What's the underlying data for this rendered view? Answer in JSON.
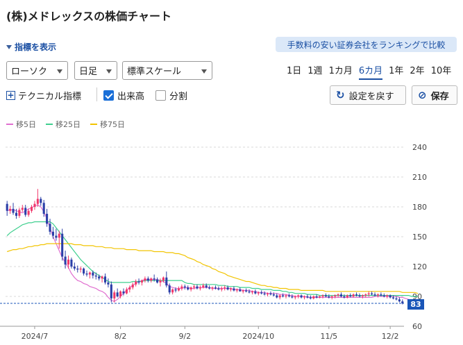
{
  "header": {
    "title": "(株)メドレックスの株価チャート"
  },
  "indicator_toggle": {
    "label": "指標を表示"
  },
  "broker_banner": {
    "label": "手数料の安い証券会社をランキングで比較"
  },
  "controls": {
    "chart_type": "ローソク",
    "interval": "日足",
    "scale": "標準スケール",
    "periods": [
      "1日",
      "1週",
      "1カ月",
      "6カ月",
      "1年",
      "2年",
      "10年"
    ],
    "active_period": "6カ月"
  },
  "options": {
    "technical_label": "テクニカル指標",
    "volume_label": "出来高",
    "volume_checked": true,
    "split_label": "分割",
    "split_checked": false,
    "reset_label": "設定を戻す",
    "save_label": "保存"
  },
  "legend": [
    {
      "label": "移5日",
      "color": "#e06fd0"
    },
    {
      "label": "移25日",
      "color": "#3ecf8e"
    },
    {
      "label": "移75日",
      "color": "#f2c400"
    }
  ],
  "colors": {
    "up": "#f0386b",
    "down": "#2b3fa8",
    "accent": "#1a56b8"
  },
  "chart_data": {
    "type": "candlestick",
    "y_ticks": [
      60,
      90,
      120,
      150,
      180,
      210,
      240
    ],
    "ylim": [
      60,
      240
    ],
    "x_ticks": [
      "2024/7",
      "8/2",
      "9/2",
      "2024/10",
      "11/5",
      "12/2"
    ],
    "x_tick_index": [
      9,
      37,
      58,
      82,
      105,
      125
    ],
    "last_price": 83,
    "series": [
      {
        "name": "移5日",
        "values": [
          176,
          177,
          177,
          176,
          175,
          174,
          176,
          178,
          179,
          181,
          182,
          180,
          175,
          168,
          159,
          150,
          143,
          136,
          129,
          124,
          119,
          113,
          109,
          106,
          105,
          103,
          102,
          100,
          99,
          98,
          96,
          95,
          93,
          89,
          86,
          85,
          87,
          90,
          93,
          96,
          99,
          101,
          103,
          105,
          106,
          107,
          107,
          107,
          107,
          107,
          106,
          105,
          103,
          100,
          99,
          98,
          98,
          98,
          99,
          99,
          98,
          98,
          99,
          99,
          99,
          99,
          99,
          98,
          98,
          98,
          98,
          98,
          98,
          98,
          97,
          97,
          97,
          96,
          96,
          96,
          95,
          95,
          94,
          94,
          94,
          93,
          93,
          93,
          93,
          92,
          92,
          92,
          91,
          91,
          90,
          90,
          90,
          90,
          89,
          89,
          89,
          89,
          89,
          89,
          89,
          89,
          89,
          89,
          89,
          89,
          89,
          89,
          89,
          89,
          89,
          89,
          89,
          89,
          89,
          89,
          90,
          90,
          90,
          90,
          90,
          90,
          90,
          90,
          89,
          89,
          88,
          87,
          86,
          84
        ]
      },
      {
        "name": "移25日",
        "values": [
          151,
          154,
          156,
          158,
          160,
          162,
          163,
          164,
          164,
          165,
          165,
          165,
          165,
          165,
          165,
          163,
          159,
          155,
          151,
          147,
          143,
          139,
          135,
          131,
          127,
          124,
          121,
          118,
          115,
          113,
          111,
          109,
          107,
          105,
          104,
          104,
          104,
          104,
          104,
          104,
          104,
          105,
          105,
          105,
          105,
          106,
          106,
          106,
          106,
          106,
          106,
          106,
          106,
          106,
          106,
          106,
          106,
          106,
          104,
          103,
          103,
          102,
          102,
          102,
          102,
          102,
          102,
          102,
          102,
          101,
          101,
          101,
          100,
          100,
          100,
          100,
          99,
          99,
          99,
          99,
          98,
          98,
          98,
          97,
          97,
          97,
          97,
          96,
          96,
          96,
          95,
          95,
          94,
          94,
          93,
          93,
          93,
          93,
          92,
          92,
          92,
          92,
          91,
          91,
          91,
          91,
          91,
          91,
          91,
          91,
          91,
          91,
          91,
          91,
          91,
          91,
          91,
          91,
          91,
          91,
          91,
          91,
          91,
          91,
          91,
          91,
          91,
          91,
          91,
          91,
          91,
          91,
          90,
          90,
          90
        ]
      },
      {
        "name": "移75日",
        "values": [
          135,
          136,
          137,
          137,
          138,
          138,
          139,
          140,
          140,
          141,
          141,
          142,
          142,
          143,
          143,
          143,
          143,
          143,
          143,
          143,
          143,
          143,
          142,
          142,
          142,
          141,
          141,
          141,
          141,
          140,
          140,
          140,
          139,
          139,
          139,
          138,
          138,
          138,
          138,
          137,
          137,
          137,
          137,
          136,
          136,
          136,
          136,
          136,
          135,
          135,
          135,
          135,
          134,
          134,
          134,
          133,
          133,
          132,
          131,
          129,
          128,
          127,
          125,
          124,
          122,
          121,
          120,
          118,
          117,
          115,
          114,
          113,
          111,
          110,
          109,
          108,
          107,
          106,
          105,
          105,
          104,
          103,
          102,
          101,
          101,
          100,
          100,
          99,
          99,
          98,
          98,
          98,
          97,
          97,
          97,
          97,
          96,
          96,
          96,
          96,
          96,
          96,
          96,
          96,
          95,
          95,
          95,
          95,
          95,
          95,
          95,
          95,
          95,
          95,
          95,
          95,
          95,
          95,
          95,
          95,
          95,
          95,
          95,
          95,
          95,
          95,
          95,
          95,
          95,
          94,
          94,
          94,
          94,
          94,
          93
        ]
      }
    ],
    "candles": [
      [
        183,
        186,
        171,
        176
      ],
      [
        176,
        181,
        173,
        178
      ],
      [
        178,
        184,
        172,
        174
      ],
      [
        174,
        178,
        168,
        171
      ],
      [
        171,
        179,
        169,
        177
      ],
      [
        177,
        182,
        175,
        179
      ],
      [
        179,
        182,
        170,
        172
      ],
      [
        172,
        178,
        170,
        176
      ],
      [
        176,
        182,
        174,
        180
      ],
      [
        180,
        186,
        177,
        183
      ],
      [
        183,
        198,
        180,
        188
      ],
      [
        188,
        190,
        181,
        184
      ],
      [
        184,
        187,
        170,
        173
      ],
      [
        173,
        178,
        160,
        163
      ],
      [
        163,
        168,
        152,
        155
      ],
      [
        155,
        160,
        148,
        151
      ],
      [
        151,
        158,
        146,
        149
      ],
      [
        149,
        156,
        138,
        153
      ],
      [
        153,
        158,
        126,
        130
      ],
      [
        130,
        136,
        118,
        122
      ],
      [
        122,
        131,
        118,
        127
      ],
      [
        127,
        129,
        118,
        120
      ],
      [
        120,
        124,
        116,
        118
      ],
      [
        118,
        121,
        114,
        117
      ],
      [
        117,
        120,
        114,
        118
      ],
      [
        118,
        119,
        111,
        113
      ],
      [
        113,
        116,
        110,
        112
      ],
      [
        112,
        115,
        108,
        114
      ],
      [
        114,
        116,
        108,
        111
      ],
      [
        111,
        114,
        107,
        110
      ],
      [
        110,
        112,
        106,
        108
      ],
      [
        108,
        111,
        104,
        110
      ],
      [
        110,
        113,
        102,
        104
      ],
      [
        104,
        108,
        99,
        102
      ],
      [
        102,
        105,
        84,
        88
      ],
      [
        88,
        96,
        84,
        94
      ],
      [
        94,
        98,
        89,
        90
      ],
      [
        90,
        96,
        88,
        95
      ],
      [
        95,
        98,
        91,
        93
      ],
      [
        93,
        99,
        92,
        97
      ],
      [
        97,
        101,
        94,
        99
      ],
      [
        99,
        104,
        97,
        102
      ],
      [
        102,
        107,
        100,
        105
      ],
      [
        105,
        108,
        102,
        104
      ],
      [
        104,
        107,
        101,
        106
      ],
      [
        106,
        110,
        104,
        108
      ],
      [
        108,
        110,
        104,
        106
      ],
      [
        106,
        109,
        104,
        108
      ],
      [
        108,
        112,
        105,
        107
      ],
      [
        107,
        109,
        103,
        104
      ],
      [
        104,
        108,
        100,
        106
      ],
      [
        106,
        110,
        104,
        109
      ],
      [
        109,
        115,
        99,
        101
      ],
      [
        101,
        103,
        92,
        94
      ],
      [
        94,
        98,
        92,
        97
      ],
      [
        97,
        99,
        94,
        96
      ],
      [
        96,
        100,
        95,
        98
      ],
      [
        98,
        102,
        96,
        100
      ],
      [
        100,
        102,
        97,
        99
      ],
      [
        99,
        101,
        96,
        97
      ],
      [
        97,
        100,
        95,
        99
      ],
      [
        99,
        102,
        97,
        100
      ],
      [
        100,
        102,
        97,
        98
      ],
      [
        98,
        101,
        96,
        99
      ],
      [
        99,
        103,
        98,
        101
      ],
      [
        101,
        103,
        98,
        99
      ],
      [
        99,
        101,
        97,
        98
      ],
      [
        98,
        100,
        96,
        99
      ],
      [
        99,
        101,
        97,
        98
      ],
      [
        98,
        100,
        96,
        97
      ],
      [
        97,
        100,
        95,
        98
      ],
      [
        98,
        101,
        96,
        99
      ],
      [
        99,
        101,
        96,
        97
      ],
      [
        97,
        99,
        95,
        98
      ],
      [
        98,
        100,
        95,
        96
      ],
      [
        96,
        98,
        94,
        97
      ],
      [
        97,
        99,
        95,
        95
      ],
      [
        95,
        97,
        93,
        96
      ],
      [
        96,
        98,
        94,
        95
      ],
      [
        95,
        97,
        93,
        94
      ],
      [
        94,
        96,
        92,
        95
      ],
      [
        95,
        97,
        92,
        93
      ],
      [
        93,
        95,
        91,
        94
      ],
      [
        94,
        96,
        92,
        93
      ],
      [
        93,
        95,
        91,
        92
      ],
      [
        92,
        94,
        90,
        93
      ],
      [
        93,
        95,
        91,
        92
      ],
      [
        92,
        94,
        90,
        91
      ],
      [
        91,
        93,
        88,
        89
      ],
      [
        89,
        92,
        87,
        91
      ],
      [
        91,
        93,
        89,
        90
      ],
      [
        90,
        92,
        88,
        91
      ],
      [
        91,
        93,
        89,
        90
      ],
      [
        90,
        92,
        88,
        89
      ],
      [
        89,
        91,
        87,
        90
      ],
      [
        90,
        92,
        88,
        91
      ],
      [
        91,
        92,
        88,
        89
      ],
      [
        89,
        91,
        87,
        90
      ],
      [
        90,
        92,
        88,
        89
      ],
      [
        89,
        91,
        87,
        88
      ],
      [
        88,
        91,
        87,
        90
      ],
      [
        90,
        92,
        88,
        89
      ],
      [
        89,
        91,
        88,
        90
      ],
      [
        90,
        92,
        88,
        91
      ],
      [
        91,
        93,
        89,
        90
      ],
      [
        90,
        92,
        88,
        89
      ],
      [
        89,
        91,
        87,
        90
      ],
      [
        90,
        92,
        88,
        91
      ],
      [
        91,
        93,
        89,
        92
      ],
      [
        92,
        94,
        89,
        90
      ],
      [
        90,
        92,
        88,
        89
      ],
      [
        89,
        92,
        88,
        91
      ],
      [
        91,
        93,
        89,
        90
      ],
      [
        90,
        93,
        89,
        92
      ],
      [
        92,
        94,
        90,
        91
      ],
      [
        91,
        93,
        89,
        90
      ],
      [
        90,
        92,
        88,
        91
      ],
      [
        91,
        93,
        89,
        92
      ],
      [
        92,
        95,
        90,
        93
      ],
      [
        93,
        95,
        91,
        92
      ],
      [
        92,
        94,
        90,
        91
      ],
      [
        91,
        93,
        89,
        92
      ],
      [
        92,
        94,
        90,
        91
      ],
      [
        91,
        93,
        89,
        90
      ],
      [
        90,
        92,
        88,
        91
      ],
      [
        91,
        92,
        88,
        89
      ],
      [
        89,
        91,
        87,
        88
      ],
      [
        88,
        90,
        86,
        87
      ],
      [
        87,
        89,
        84,
        85
      ],
      [
        85,
        87,
        82,
        83
      ]
    ]
  }
}
